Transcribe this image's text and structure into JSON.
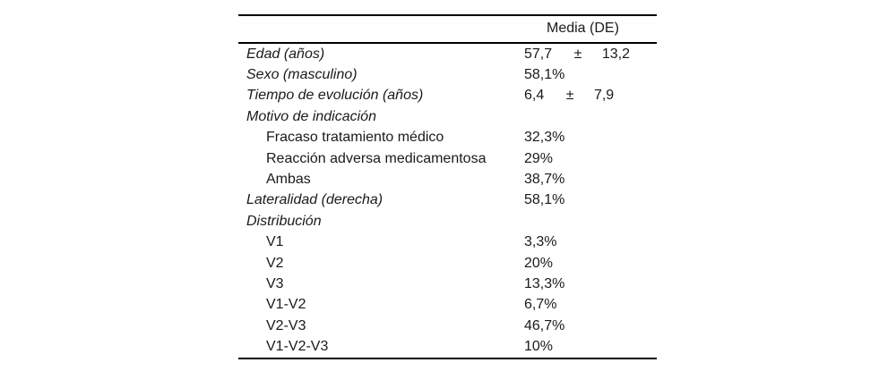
{
  "table": {
    "header": {
      "value_col": "Media (DE)"
    },
    "rows": [
      {
        "label": "Edad (años)",
        "value": "57,7",
        "pm": "±",
        "sd": "13,2"
      },
      {
        "label": "Sexo (masculino)",
        "value": "58,1%"
      },
      {
        "label": "Tiempo de evolución (años)",
        "value": "6,4",
        "pm": "±",
        "sd": "7,9"
      },
      {
        "label": "Motivo de indicación",
        "value": ""
      },
      {
        "label": "Fracaso tratamiento médico",
        "value": "32,3%"
      },
      {
        "label": "Reacción adversa medicamentosa",
        "value": "29%"
      },
      {
        "label": "Ambas",
        "value": "38,7%"
      },
      {
        "label": "Lateralidad (derecha)",
        "value": "58,1%"
      },
      {
        "label": "Distribución",
        "value": ""
      },
      {
        "label": "V1",
        "value": "3,3%"
      },
      {
        "label": "V2",
        "value": "20%"
      },
      {
        "label": "V3",
        "value": "13,3%"
      },
      {
        "label": "V1-V2",
        "value": "6,7%"
      },
      {
        "label": "V2-V3",
        "value": "46,7%"
      },
      {
        "label": "V1-V2-V3",
        "value": "10%"
      }
    ]
  }
}
